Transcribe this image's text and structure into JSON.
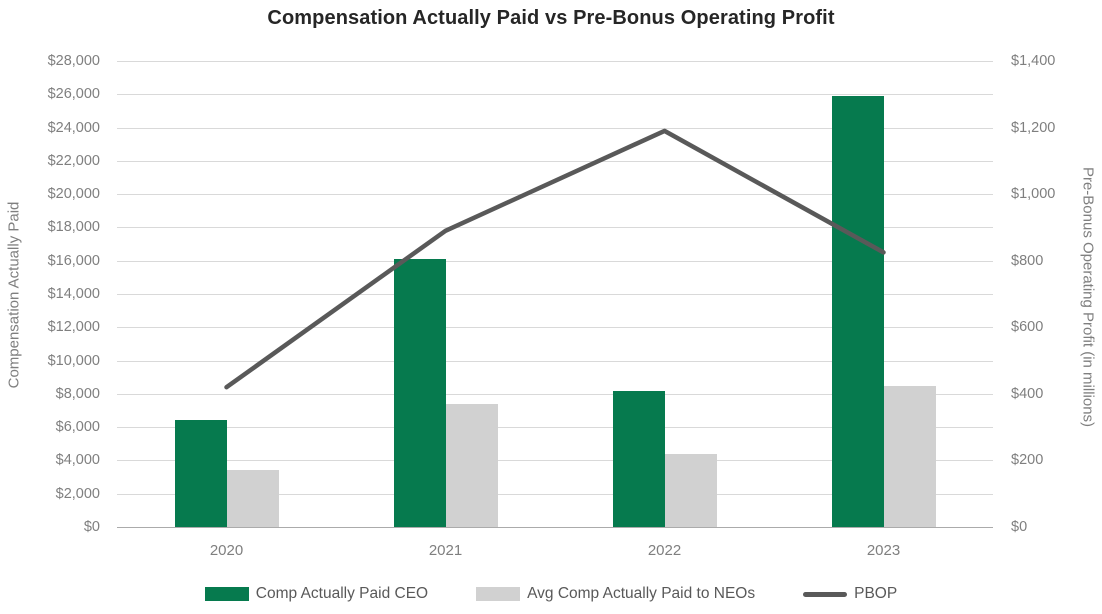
{
  "title": "Compensation Actually Paid vs Pre-Bonus Operating Profit",
  "chart_data": {
    "type": "combo",
    "categories": [
      "2020",
      "2021",
      "2022",
      "2023"
    ],
    "series": [
      {
        "name": "Comp Actually Paid CEO",
        "type": "bar",
        "axis": "left",
        "color": "#067A4E",
        "values": [
          6400,
          16100,
          8200,
          25900
        ]
      },
      {
        "name": "Avg Comp Actually Paid to NEOs",
        "type": "bar",
        "axis": "left",
        "color": "#D1D1D1",
        "values": [
          3400,
          7400,
          4400,
          8500
        ]
      },
      {
        "name": "PBOP",
        "type": "line",
        "axis": "right",
        "color": "#595959",
        "values": [
          420,
          890,
          1190,
          825
        ]
      }
    ],
    "left_axis": {
      "title": "Compensation Actually Paid",
      "min": 0,
      "max": 28000,
      "step": 2000,
      "tick_prefix": "$"
    },
    "right_axis": {
      "title": "Pre-Bonus Operating Profit (in millions)",
      "min": 0,
      "max": 1400,
      "step": 200,
      "tick_prefix": "$"
    },
    "legend_position": "bottom",
    "grid": true
  }
}
